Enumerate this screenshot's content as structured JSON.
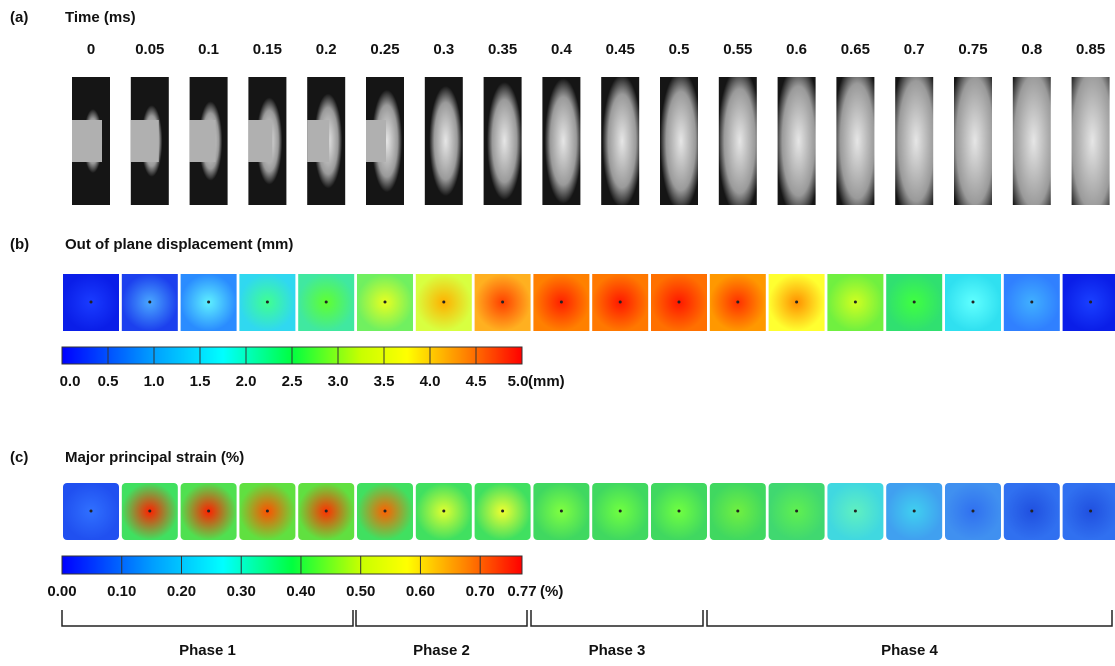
{
  "panel_a": {
    "label": "(a)",
    "title": "Time (ms)",
    "times": [
      "0",
      "0.05",
      "0.1",
      "0.15",
      "0.2",
      "0.25",
      "0.3",
      "0.35",
      "0.4",
      "0.45",
      "0.5",
      "0.55",
      "0.6",
      "0.65",
      "0.7",
      "0.75",
      "0.8",
      "0.85"
    ]
  },
  "panel_b": {
    "label": "(b)",
    "title": "Out of plane displacement (mm)",
    "colorbar_labels": [
      "0.0",
      "0.5",
      "1.0",
      "1.5",
      "2.0",
      "2.5",
      "3.0",
      "3.5",
      "4.0",
      "4.5",
      "5.0"
    ],
    "unit": "(mm)"
  },
  "panel_c": {
    "label": "(c)",
    "title": "Major principal strain (%)",
    "colorbar_labels": [
      "0.00",
      "0.10",
      "0.20",
      "0.30",
      "0.40",
      "0.50",
      "0.60",
      "0.70",
      "0.77"
    ],
    "unit": "(%)"
  },
  "phases": [
    "Phase 1",
    "Phase 2",
    "Phase 3",
    "Phase 4"
  ]
}
